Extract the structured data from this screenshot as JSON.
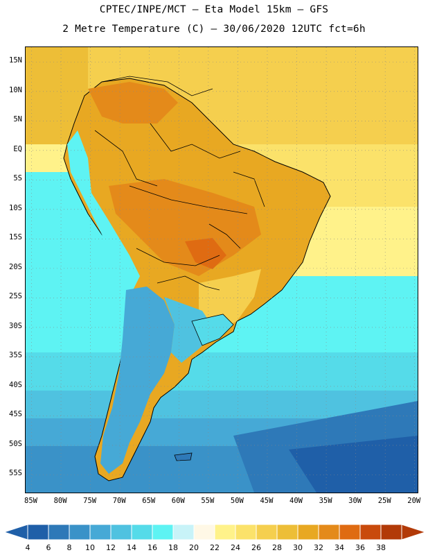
{
  "header": {
    "title_line1": "CPTEC/INPE/MCT –  Eta Model 15km – GFS",
    "title_line2": "2 Metre Temperature (C) – 30/06/2020 12UTC fct=6h"
  },
  "axes": {
    "lat_labels": [
      "15N",
      "10N",
      "5N",
      "EQ",
      "5S",
      "10S",
      "15S",
      "20S",
      "25S",
      "30S",
      "35S",
      "40S",
      "45S",
      "50S",
      "55S"
    ],
    "lat_values": [
      15,
      10,
      5,
      0,
      -5,
      -10,
      -15,
      -20,
      -25,
      -30,
      -35,
      -40,
      -45,
      -50,
      -55
    ],
    "lon_labels": [
      "85W",
      "80W",
      "75W",
      "70W",
      "65W",
      "60W",
      "55W",
      "50W",
      "45W",
      "40W",
      "35W",
      "30W",
      "25W",
      "20W"
    ],
    "lon_values": [
      -85,
      -80,
      -75,
      -70,
      -65,
      -60,
      -55,
      -50,
      -45,
      -40,
      -35,
      -30,
      -25,
      -20
    ],
    "lat_range": [
      -58,
      17.5
    ],
    "lon_range": [
      -86,
      -19.5
    ]
  },
  "colorbar": {
    "labels": [
      "4",
      "6",
      "8",
      "10",
      "12",
      "14",
      "16",
      "18",
      "20",
      "22",
      "24",
      "26",
      "28",
      "30",
      "32",
      "34",
      "36",
      "38"
    ],
    "colors": [
      "#1f5fa8",
      "#2e79b8",
      "#3a92c8",
      "#46a9d6",
      "#4fc2e0",
      "#55dbe9",
      "#5ef3f3",
      "#c8f3f8",
      "#fff8e6",
      "#fff28a",
      "#fbe26a",
      "#f5cf4e",
      "#edbe37",
      "#e8a822",
      "#e48a1a",
      "#df6b12",
      "#c94a0c",
      "#b23a08"
    ]
  }
}
